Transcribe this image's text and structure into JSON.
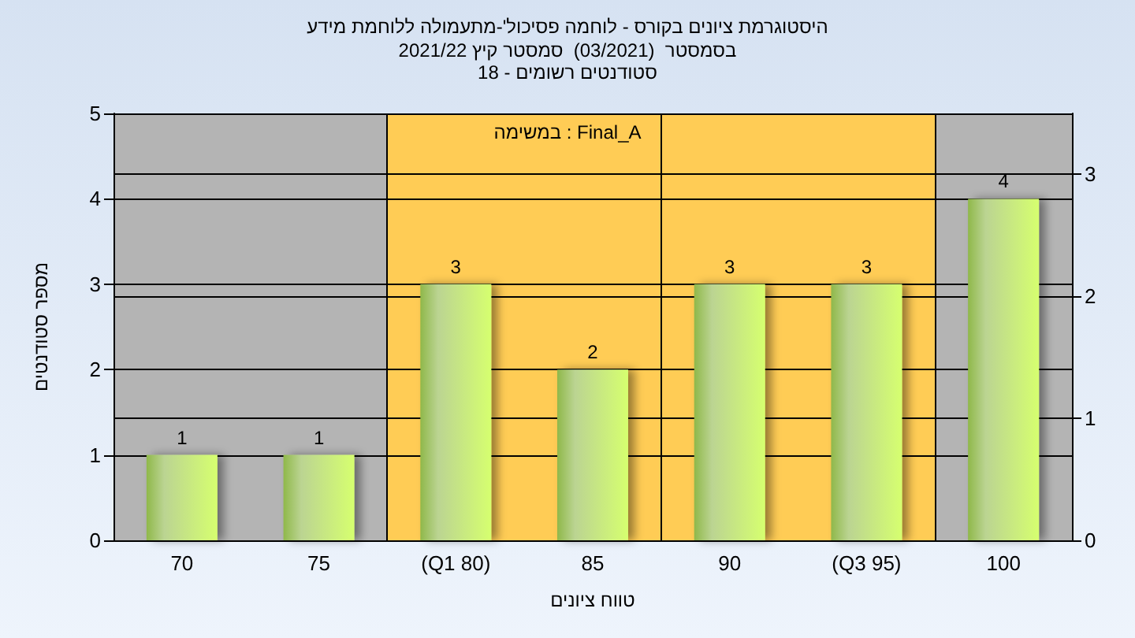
{
  "chart_data": {
    "type": "bar",
    "title": "היסטוגרמת ציונים בקורס - לוחמה פסיכול'-מתעמולה ללוחמת מידע",
    "subtitle": "בסמסטר  (03/2021)  סמסטר קיץ 2021/22\nסטודנטים רשומים - 18",
    "xlabel": "טווח ציונים",
    "ylabel": "מספר סטודנטים",
    "categories": [
      "70",
      "75",
      "(Q1 80)",
      "85",
      "90",
      "(Q3 95)",
      "100"
    ],
    "bands": [
      {
        "axis": "x",
        "from": "(Q1 80)",
        "to": "(Q3 95)",
        "color": "#ffcc55"
      }
    ],
    "series": [
      {
        "color": "#8fb84a",
        "values": [
          1,
          1,
          3,
          2,
          3,
          3,
          4
        ],
        "value_labels": [
          "1",
          "1",
          "3",
          "2",
          "3",
          "3",
          "4"
        ]
      }
    ],
    "ylim": [
      0,
      5
    ],
    "yticks": [
      0,
      1,
      2,
      3,
      4,
      5
    ],
    "y2lim": [
      0,
      3.5
    ],
    "y2ticks": [
      0,
      1,
      2,
      3
    ],
    "annotations": [
      "במשימה : Final_A"
    ],
    "grid": true
  }
}
